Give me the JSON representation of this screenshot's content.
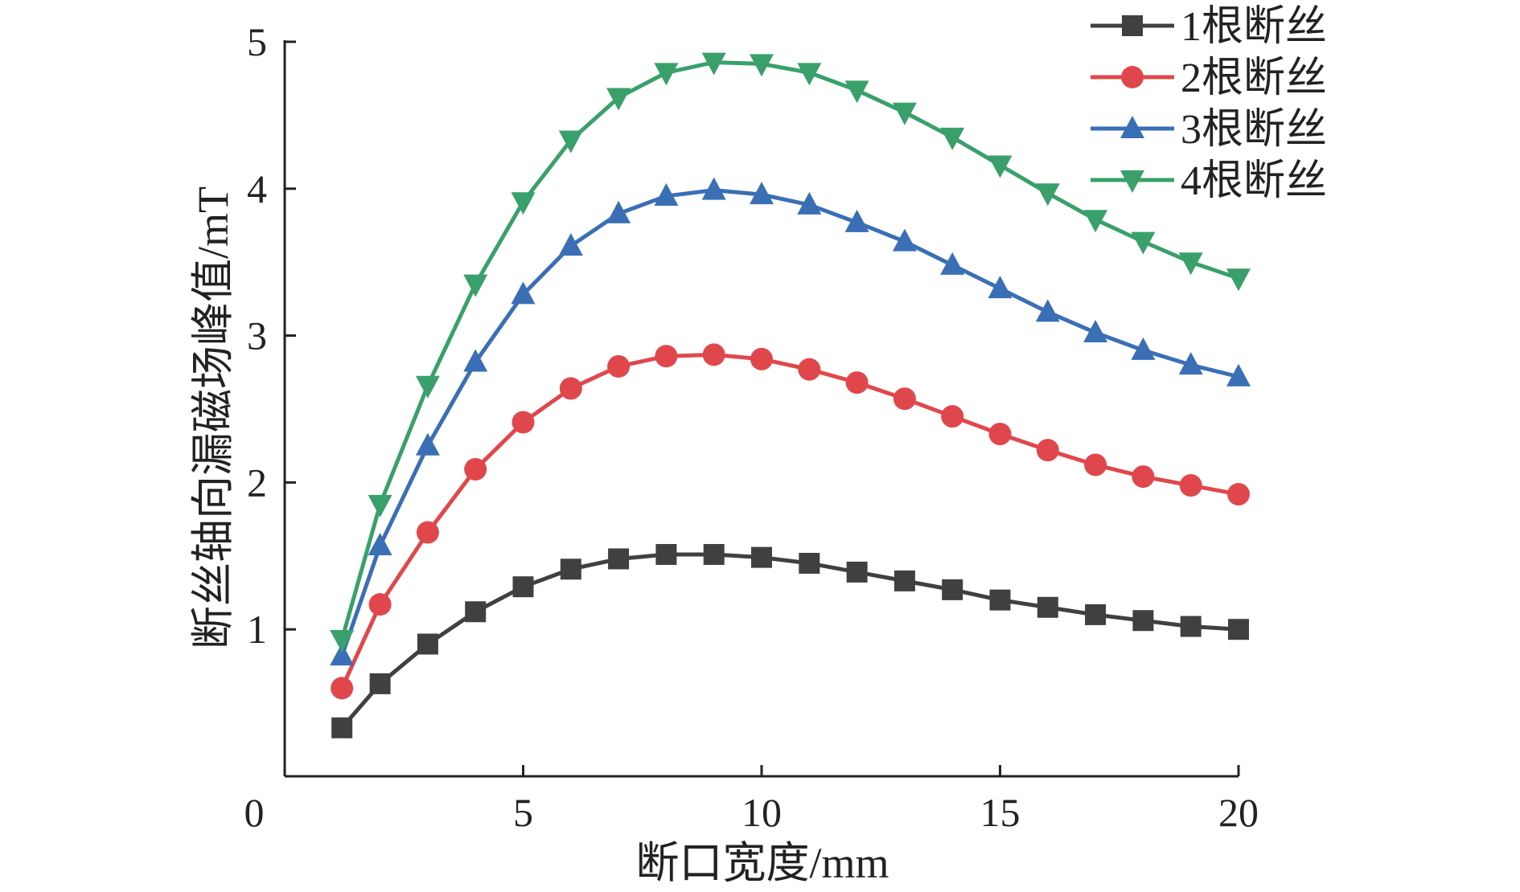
{
  "chart_data": {
    "type": "line",
    "xlabel": "断口宽度/mm",
    "ylabel": "断丝轴向漏磁场峰值/mT",
    "xlim": [
      0,
      20
    ],
    "ylim": [
      0,
      5
    ],
    "xticks": [
      0,
      5,
      10,
      15,
      20
    ],
    "yticks": [
      1,
      2,
      3,
      4,
      5
    ],
    "legend_position": "top-right",
    "x": [
      1.2,
      2,
      3,
      4,
      5,
      6,
      7,
      8,
      9,
      10,
      11,
      12,
      13,
      14,
      15,
      16,
      17,
      18,
      19,
      20
    ],
    "series": [
      {
        "name": "1根断丝",
        "color": "#404040",
        "marker": "square",
        "values": [
          0.33,
          0.63,
          0.9,
          1.12,
          1.29,
          1.41,
          1.48,
          1.51,
          1.51,
          1.49,
          1.45,
          1.39,
          1.33,
          1.27,
          1.2,
          1.15,
          1.1,
          1.06,
          1.02,
          1.0
        ]
      },
      {
        "name": "2根断丝",
        "color": "#e0474c",
        "marker": "circle",
        "values": [
          0.6,
          1.17,
          1.66,
          2.09,
          2.41,
          2.64,
          2.79,
          2.86,
          2.87,
          2.84,
          2.77,
          2.68,
          2.57,
          2.45,
          2.33,
          2.22,
          2.12,
          2.04,
          1.98,
          1.92
        ]
      },
      {
        "name": "3根断丝",
        "color": "#3a6fb5",
        "marker": "triangle-up",
        "values": [
          0.82,
          1.57,
          2.25,
          2.82,
          3.28,
          3.61,
          3.83,
          3.95,
          3.99,
          3.96,
          3.89,
          3.77,
          3.64,
          3.48,
          3.32,
          3.16,
          3.02,
          2.9,
          2.8,
          2.72
        ]
      },
      {
        "name": "4根断丝",
        "color": "#3aa06b",
        "marker": "triangle-down",
        "values": [
          0.93,
          1.85,
          2.66,
          3.35,
          3.91,
          4.33,
          4.62,
          4.79,
          4.86,
          4.85,
          4.79,
          4.67,
          4.52,
          4.35,
          4.16,
          3.97,
          3.79,
          3.64,
          3.5,
          3.39
        ]
      }
    ]
  }
}
